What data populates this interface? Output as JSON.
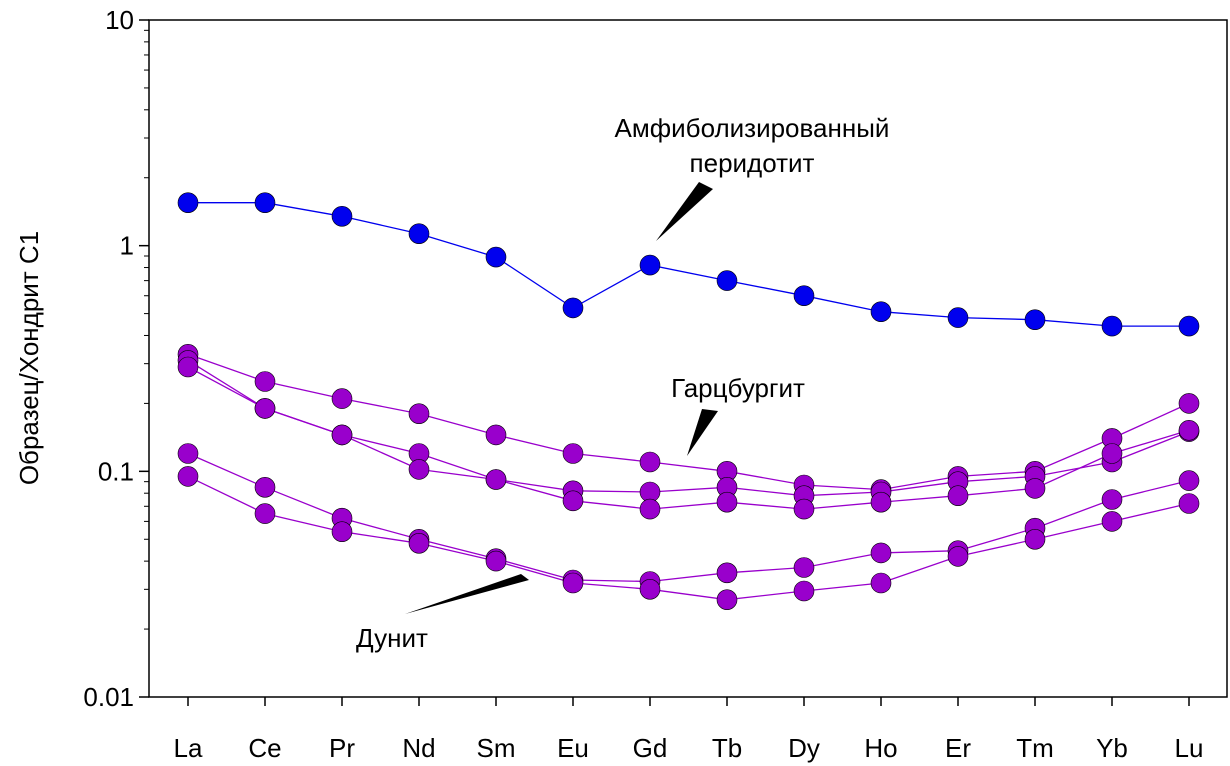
{
  "chart_data": {
    "type": "line",
    "title": "",
    "xlabel": "",
    "ylabel": "Образец/Хондрит С1",
    "yscale": "log",
    "ylim": [
      0.01,
      10
    ],
    "yticks": [
      "10",
      "1",
      "0.1",
      "0.01"
    ],
    "grid": false,
    "categories": [
      "La",
      "Ce",
      "Pr",
      "Nd",
      "Sm",
      "Eu",
      "Gd",
      "Tb",
      "Dy",
      "Ho",
      "Er",
      "Tm",
      "Yb",
      "Lu"
    ],
    "series": [
      {
        "group": "amphibolized",
        "color": "#0000ee",
        "values": [
          1.55,
          1.55,
          1.35,
          1.13,
          0.89,
          0.53,
          0.82,
          0.7,
          0.6,
          0.51,
          0.48,
          0.47,
          0.44,
          0.44
        ]
      },
      {
        "group": "harzburgite",
        "color": "#9900cc",
        "values": [
          0.33,
          0.25,
          0.21,
          0.18,
          0.145,
          0.12,
          0.11,
          0.1,
          0.087,
          0.083,
          0.095,
          0.1,
          0.14,
          0.2
        ]
      },
      {
        "group": "harzburgite",
        "color": "#9900cc",
        "values": [
          0.31,
          0.19,
          0.145,
          0.12,
          0.092,
          0.082,
          0.081,
          0.085,
          0.078,
          0.081,
          0.09,
          0.095,
          0.11,
          0.15
        ]
      },
      {
        "group": "harzburgite",
        "color": "#9900cc",
        "values": [
          0.29,
          0.19,
          0.145,
          0.102,
          0.092,
          0.074,
          0.068,
          0.073,
          0.068,
          0.073,
          0.078,
          0.084,
          0.12,
          0.152
        ]
      },
      {
        "group": "dunite",
        "color": "#9900cc",
        "values": [
          0.12,
          0.085,
          0.062,
          0.05,
          0.041,
          0.033,
          0.0325,
          0.0355,
          0.0375,
          0.0435,
          0.0445,
          0.056,
          0.075,
          0.091
        ]
      },
      {
        "group": "dunite",
        "color": "#9900cc",
        "values": [
          0.095,
          0.065,
          0.054,
          0.048,
          0.04,
          0.032,
          0.03,
          0.027,
          0.0295,
          0.032,
          0.042,
          0.05,
          0.06,
          0.072
        ]
      }
    ],
    "annotations": [
      {
        "lines": [
          "Амфиболизированный",
          "перидотит"
        ]
      },
      {
        "lines": [
          "Гарцбургит"
        ]
      },
      {
        "lines": [
          "Дунит"
        ]
      }
    ]
  }
}
